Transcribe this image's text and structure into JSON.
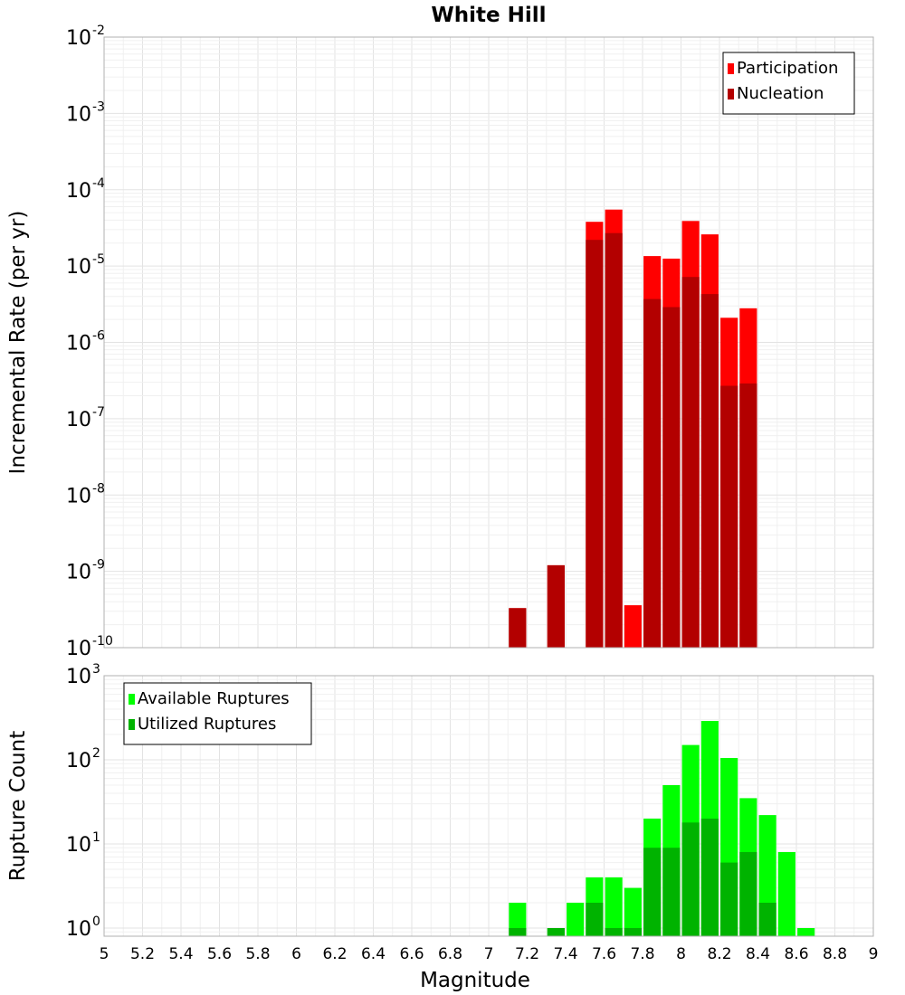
{
  "chart_data": [
    {
      "type": "bar",
      "title": "White Hill",
      "xlabel": "",
      "ylabel": "Incremental Rate (per yr)",
      "yscale": "log",
      "ylim": [
        1e-10,
        0.01
      ],
      "xlim": [
        5,
        9
      ],
      "y_ticks": [
        {
          "base": "10",
          "exp": "-10"
        },
        {
          "base": "10",
          "exp": "-9"
        },
        {
          "base": "10",
          "exp": "-8"
        },
        {
          "base": "10",
          "exp": "-7"
        },
        {
          "base": "10",
          "exp": "-6"
        },
        {
          "base": "10",
          "exp": "-5"
        },
        {
          "base": "10",
          "exp": "-4"
        },
        {
          "base": "10",
          "exp": "-3"
        },
        {
          "base": "10",
          "exp": "-2"
        }
      ],
      "grid": true,
      "legend_position": "top-right",
      "series": [
        {
          "name": "Participation",
          "color": "#ff0000",
          "x": [
            7.15,
            7.35,
            7.55,
            7.65,
            7.75,
            7.85,
            7.95,
            8.05,
            8.15,
            8.25,
            8.35
          ],
          "values": [
            3.3e-10,
            1.2e-09,
            3.8e-05,
            5.5e-05,
            3.6e-10,
            1.35e-05,
            1.25e-05,
            3.9e-05,
            2.6e-05,
            2.1e-06,
            2.8e-06
          ]
        },
        {
          "name": "Nucleation",
          "color": "#b30000",
          "x": [
            7.15,
            7.35,
            7.55,
            7.65,
            7.85,
            7.95,
            8.05,
            8.15,
            8.25,
            8.35
          ],
          "values": [
            3.3e-10,
            1.2e-09,
            2.2e-05,
            2.7e-05,
            3.7e-06,
            2.9e-06,
            7.2e-06,
            4.3e-06,
            2.7e-07,
            2.9e-07
          ]
        }
      ]
    },
    {
      "type": "bar",
      "title": "",
      "xlabel": "Magnitude",
      "ylabel": "Rupture Count",
      "yscale": "log",
      "ylim": [
        0.8,
        1000
      ],
      "xlim": [
        5,
        9
      ],
      "x_ticks": [
        "5",
        "5.2",
        "5.4",
        "5.6",
        "5.8",
        "6",
        "6.2",
        "6.4",
        "6.6",
        "6.8",
        "7",
        "7.2",
        "7.4",
        "7.6",
        "7.8",
        "8",
        "8.2",
        "8.4",
        "8.6",
        "8.8",
        "9"
      ],
      "y_ticks": [
        {
          "base": "10",
          "exp": "0"
        },
        {
          "base": "10",
          "exp": "1"
        },
        {
          "base": "10",
          "exp": "2"
        },
        {
          "base": "10",
          "exp": "3"
        }
      ],
      "grid": true,
      "legend_position": "top-left",
      "series": [
        {
          "name": "Available Ruptures",
          "color": "#00ff00",
          "x": [
            7.15,
            7.35,
            7.45,
            7.55,
            7.65,
            7.75,
            7.85,
            7.95,
            8.05,
            8.15,
            8.25,
            8.35,
            8.45,
            8.55,
            8.65
          ],
          "values": [
            2,
            1,
            2,
            4,
            4,
            3,
            20,
            50,
            150,
            290,
            105,
            35,
            22,
            8,
            1
          ]
        },
        {
          "name": "Utilized Ruptures",
          "color": "#00b300",
          "x": [
            7.15,
            7.35,
            7.55,
            7.65,
            7.75,
            7.85,
            7.95,
            8.05,
            8.15,
            8.25,
            8.35,
            8.45
          ],
          "values": [
            1,
            1,
            2,
            1,
            1,
            9,
            9,
            18,
            20,
            6,
            8,
            2
          ]
        }
      ]
    }
  ]
}
